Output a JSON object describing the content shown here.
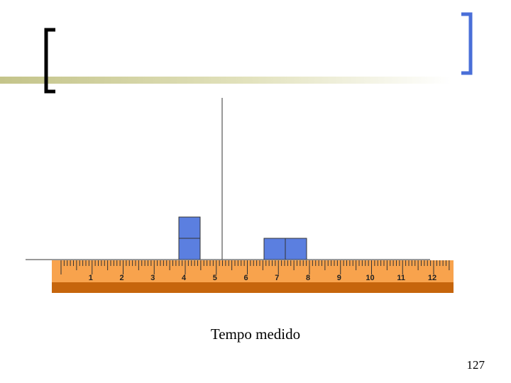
{
  "ruler": {
    "labels": [
      "1",
      "2",
      "3",
      "4",
      "5",
      "6",
      "7",
      "8",
      "9",
      "10",
      "11",
      "12"
    ]
  },
  "caption": "Tempo medido",
  "page_number": "127"
}
